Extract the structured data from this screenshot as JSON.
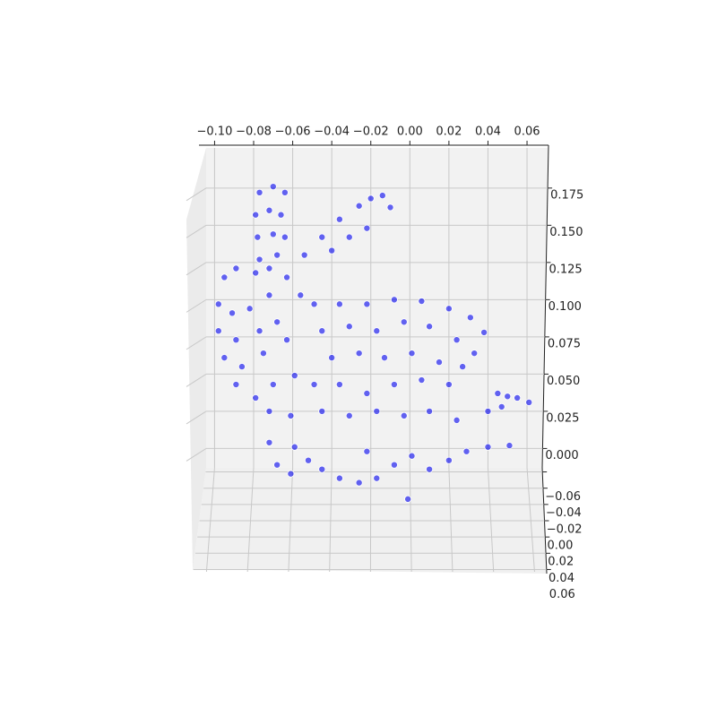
{
  "chart_data": {
    "type": "scatter3d",
    "xlim": [
      -0.108,
      0.071
    ],
    "ylim": [
      -0.065,
      0.065
    ],
    "zlim": [
      -0.013,
      0.202
    ],
    "xticks": [
      {
        "value": -0.1,
        "label": "−0.10"
      },
      {
        "value": -0.08,
        "label": "−0.08"
      },
      {
        "value": -0.06,
        "label": "−0.06"
      },
      {
        "value": -0.04,
        "label": "−0.04"
      },
      {
        "value": -0.02,
        "label": "−0.02"
      },
      {
        "value": 0,
        "label": "0.00"
      },
      0.02,
      0.04,
      0.06
    ],
    "yticks": [
      {
        "value": -0.06,
        "label": "−0.06"
      },
      {
        "value": -0.04,
        "label": "−0.04"
      },
      {
        "value": -0.02,
        "label": "−0.02"
      },
      {
        "value": 0,
        "label": "0.00"
      },
      0.02,
      0.04,
      0.06
    ],
    "zticks": [
      {
        "value": 0,
        "label": "0.000"
      },
      0.025,
      {
        "value": 0.05,
        "label": "0.050"
      },
      0.075,
      {
        "value": 0.1,
        "label": "0.100"
      },
      0.125,
      {
        "value": 0.15,
        "label": "0.150"
      },
      0.175
    ],
    "grid": true,
    "series": [
      {
        "color": "#0000ee",
        "x": [
          -0.077,
          -0.07,
          -0.064,
          -0.079,
          -0.072,
          -0.066,
          -0.078,
          -0.07,
          -0.064,
          -0.077,
          -0.068,
          -0.054,
          -0.045,
          -0.036,
          -0.026,
          -0.02,
          -0.014,
          -0.01,
          -0.022,
          -0.031,
          -0.04,
          -0.095,
          -0.089,
          -0.079,
          -0.072,
          -0.063,
          -0.056,
          -0.098,
          -0.091,
          -0.082,
          -0.072,
          -0.098,
          -0.089,
          -0.077,
          -0.068,
          -0.095,
          -0.086,
          -0.075,
          -0.063,
          -0.089,
          -0.079,
          -0.07,
          -0.059,
          -0.072,
          -0.061,
          -0.049,
          -0.036,
          -0.022,
          -0.008,
          0.006,
          0.02,
          0.031,
          0.038,
          -0.045,
          -0.031,
          -0.017,
          -0.003,
          0.01,
          0.024,
          0.033,
          -0.04,
          -0.026,
          -0.013,
          0.001,
          0.015,
          0.027,
          -0.049,
          -0.036,
          -0.022,
          -0.008,
          0.006,
          0.02,
          -0.045,
          -0.031,
          -0.017,
          -0.003,
          0.01,
          0.024,
          0.045,
          0.05,
          0.055,
          0.061,
          0.047,
          0.04,
          -0.072,
          -0.068,
          -0.061,
          -0.052,
          -0.045,
          -0.036,
          -0.026,
          -0.017,
          -0.008,
          0.001,
          0.01,
          0.02,
          0.029,
          0.04,
          0.051,
          -0.059,
          -0.022,
          -0.001
        ],
        "y": [
          0,
          0,
          0,
          0,
          0,
          0,
          0,
          0,
          0,
          0,
          0,
          0,
          0,
          0,
          0,
          0,
          0,
          0,
          0,
          0,
          0,
          0,
          0,
          0,
          0,
          0,
          0,
          0,
          0,
          0,
          0,
          0,
          0,
          0,
          0,
          0,
          0,
          0,
          0,
          0,
          0,
          0,
          0,
          0,
          0,
          0,
          0,
          0,
          0,
          0,
          0,
          0,
          0,
          0,
          0,
          0,
          0,
          0,
          0,
          0,
          0,
          0,
          0,
          0,
          0,
          0,
          0,
          0,
          0,
          0,
          0,
          0,
          0,
          0,
          0,
          0,
          0,
          0,
          0,
          0,
          0,
          0,
          0,
          0,
          0,
          0,
          0,
          0,
          0,
          0,
          0,
          0,
          0,
          0,
          0,
          0,
          0,
          0,
          0,
          0,
          0,
          0
        ],
        "z": [
          0.172,
          0.176,
          0.172,
          0.157,
          0.16,
          0.157,
          0.142,
          0.144,
          0.142,
          0.127,
          0.13,
          0.13,
          0.142,
          0.154,
          0.163,
          0.168,
          0.17,
          0.162,
          0.148,
          0.142,
          0.133,
          0.115,
          0.121,
          0.118,
          0.121,
          0.115,
          0.103,
          0.097,
          0.091,
          0.094,
          0.103,
          0.079,
          0.073,
          0.079,
          0.085,
          0.061,
          0.055,
          0.064,
          0.073,
          0.043,
          0.034,
          0.043,
          0.049,
          0.025,
          0.022,
          0.097,
          0.097,
          0.097,
          0.1,
          0.099,
          0.094,
          0.088,
          0.078,
          0.079,
          0.082,
          0.079,
          0.085,
          0.082,
          0.073,
          0.064,
          0.061,
          0.064,
          0.061,
          0.064,
          0.058,
          0.055,
          0.043,
          0.043,
          0.037,
          0.043,
          0.046,
          0.043,
          0.025,
          0.022,
          0.025,
          0.022,
          0.025,
          0.019,
          0.037,
          0.035,
          0.034,
          0.031,
          0.028,
          0.025,
          0.004,
          -0.011,
          -0.017,
          -0.008,
          -0.014,
          -0.02,
          -0.023,
          -0.02,
          -0.011,
          -0.005,
          -0.014,
          -0.008,
          -0.002,
          0.001,
          0.002,
          0.001,
          -0.002,
          -0.034
        ]
      }
    ]
  }
}
